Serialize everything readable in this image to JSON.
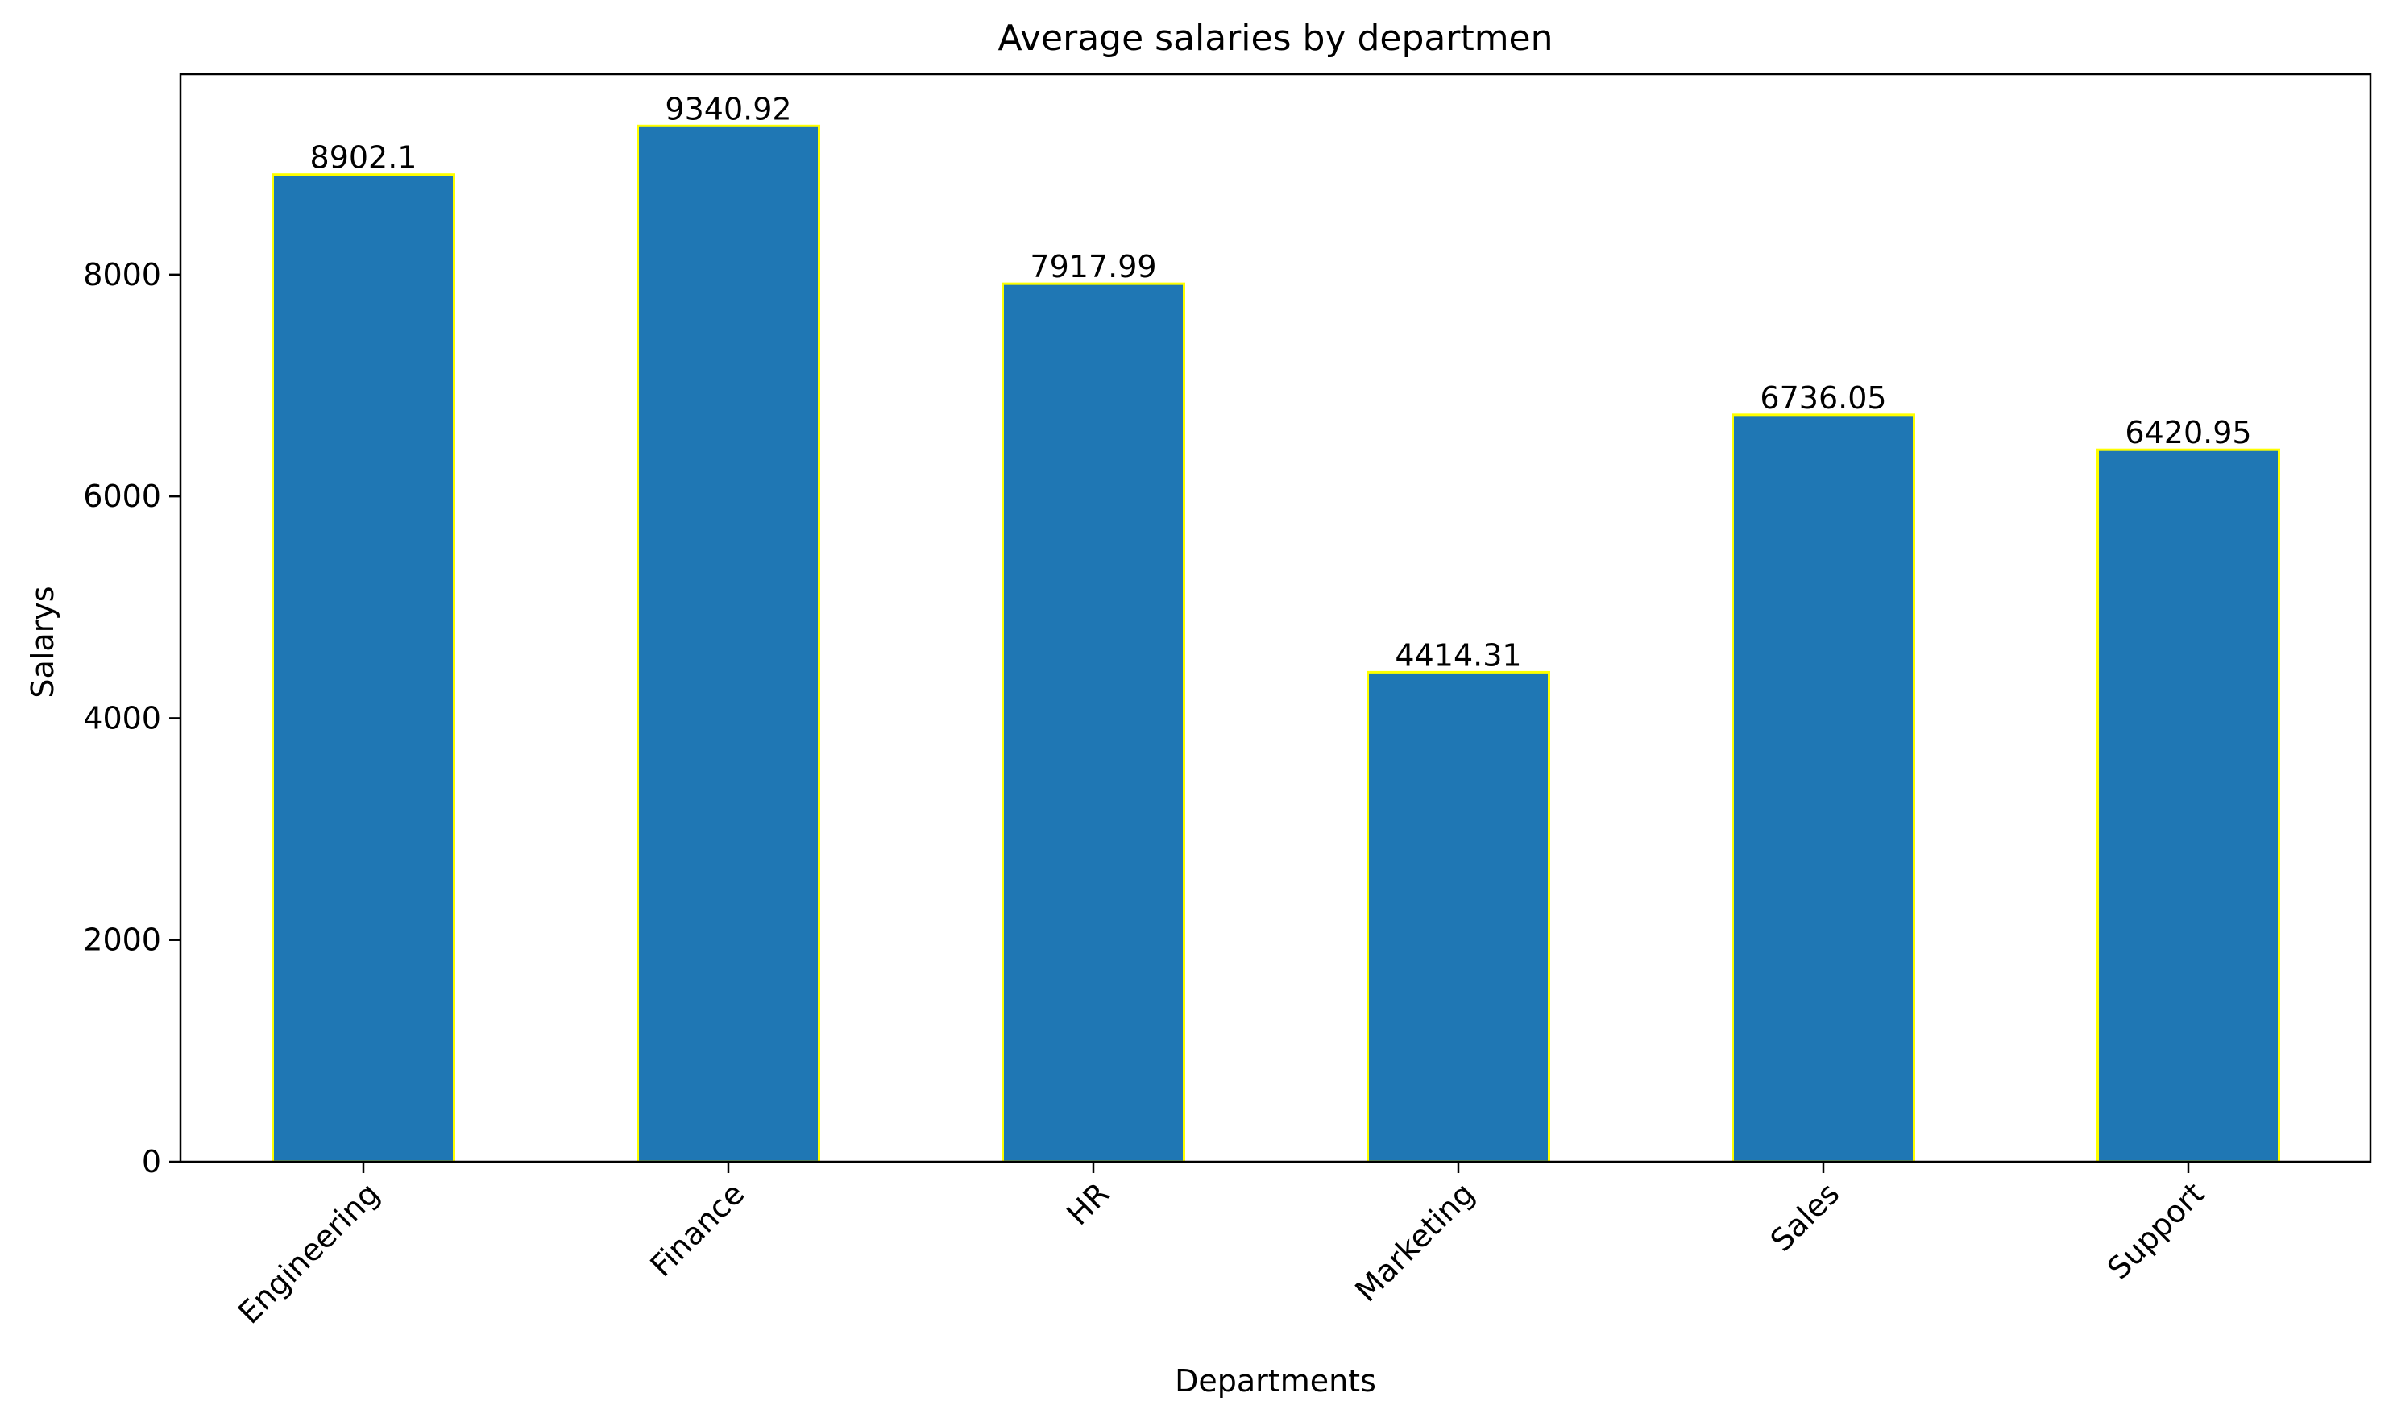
{
  "chart_data": {
    "type": "bar",
    "title": "Average salaries by departmen",
    "xlabel": "Departments",
    "ylabel": "Salarys",
    "categories": [
      "Engineering",
      "Finance",
      "HR",
      "Marketing",
      "Sales",
      "Support"
    ],
    "values": [
      8902.1,
      9340.92,
      7917.99,
      4414.31,
      6736.05,
      6420.95
    ],
    "data_labels": [
      "8902.1",
      "9340.92",
      "7917.99",
      "4414.31",
      "6736.05",
      "6420.95"
    ],
    "yticks": [
      0,
      2000,
      4000,
      6000,
      8000
    ],
    "ylim": [
      0,
      9808
    ],
    "grid": false,
    "legend": "none",
    "bar_color": "#1f77b4",
    "bar_edge_color": "#ffff00"
  }
}
